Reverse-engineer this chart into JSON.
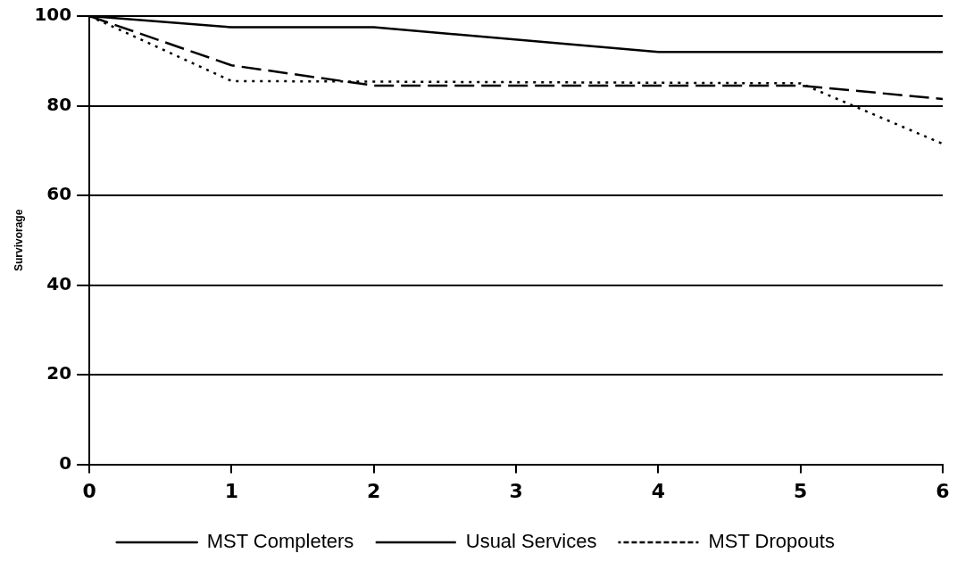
{
  "chart_data": {
    "type": "line",
    "ylabel": "Survivorage",
    "xlim": [
      0,
      6
    ],
    "xticks": [
      0,
      1,
      2,
      3,
      4,
      5,
      6
    ],
    "ylim": [
      0,
      100
    ],
    "yticks": [
      0,
      20,
      40,
      60,
      80,
      100
    ],
    "grid": "y",
    "legend": "bottom",
    "marker": "none",
    "series": [
      {
        "name": "MST Completers",
        "color": "#000000",
        "line_style": "solid",
        "x": [
          0,
          1,
          2,
          4,
          6
        ],
        "values": [
          100,
          97.5,
          97.5,
          92,
          92
        ]
      },
      {
        "name": "Usual Services",
        "color": "#000000",
        "line_style": "dashed",
        "x": [
          0,
          1,
          2,
          5,
          6
        ],
        "values": [
          100,
          89,
          84.5,
          84.5,
          81.5
        ]
      },
      {
        "name": "MST Dropouts",
        "color": "#000000",
        "line_style": "dotted",
        "x": [
          0,
          1,
          5,
          6
        ],
        "values": [
          100,
          85.5,
          85,
          71.5
        ]
      }
    ]
  }
}
